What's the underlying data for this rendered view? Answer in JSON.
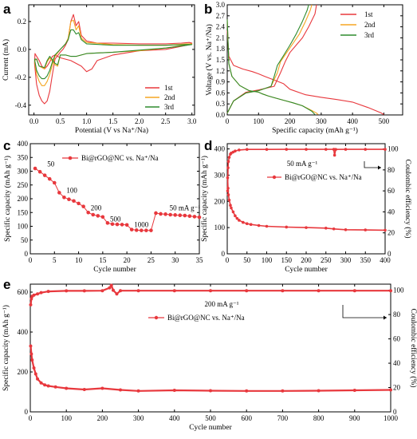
{
  "chart_data": [
    {
      "panel": "a",
      "type": "line",
      "xlabel": "Potential (V vs Na⁺/Na)",
      "ylabel": "Current (mA)",
      "xlim": [
        -0.1,
        3.05
      ],
      "ylim": [
        -0.47,
        0.32
      ],
      "xticks": [
        "0.0",
        "0.5",
        "1.0",
        "1.5",
        "2.0",
        "2.5",
        "3.0"
      ],
      "xtick_values": [
        0,
        0.5,
        1,
        1.5,
        2,
        2.5,
        3
      ],
      "yticks": [
        "-0.4",
        "-0.2",
        "0.0",
        "0.2"
      ],
      "ytick_values": [
        -0.4,
        -0.2,
        0,
        0.2
      ],
      "legend_position": "bottom-right",
      "series": [
        {
          "name": "1st",
          "color": "#e8383d",
          "x": [
            0.01,
            0.05,
            0.1,
            0.15,
            0.2,
            0.25,
            0.3,
            0.35,
            0.4,
            0.5,
            0.55,
            0.6,
            0.65,
            0.7,
            0.75,
            0.8,
            0.85,
            0.9,
            1.0,
            1.2,
            1.5,
            2.0,
            2.5,
            2.8,
            2.95,
            3.0,
            2.9,
            2.5,
            2.0,
            1.5,
            1.2,
            1.1,
            1.0,
            0.9,
            0.8,
            0.7,
            0.6,
            0.5,
            0.45,
            0.4,
            0.35,
            0.3,
            0.25,
            0.2,
            0.15,
            0.1,
            0.05,
            0.02,
            0.01
          ],
          "y": [
            -0.1,
            -0.25,
            -0.33,
            -0.37,
            -0.39,
            -0.37,
            -0.3,
            -0.18,
            -0.07,
            -0.02,
            0.0,
            0.03,
            0.07,
            0.2,
            0.25,
            0.17,
            0.2,
            0.1,
            0.06,
            0.045,
            0.045,
            0.04,
            0.04,
            0.045,
            0.05,
            0.045,
            0.03,
            0.0,
            -0.01,
            -0.04,
            -0.08,
            -0.14,
            -0.16,
            -0.12,
            -0.1,
            -0.08,
            -0.07,
            -0.06,
            -0.05,
            -0.04,
            -0.05,
            -0.09,
            -0.12,
            -0.14,
            -0.12,
            -0.08,
            -0.05,
            -0.03,
            -0.1
          ]
        },
        {
          "name": "2nd",
          "color": "#f5a623",
          "x": [
            0.01,
            0.05,
            0.1,
            0.15,
            0.2,
            0.25,
            0.3,
            0.35,
            0.4,
            0.5,
            0.6,
            0.65,
            0.7,
            0.75,
            0.8,
            0.85,
            0.9,
            1.0,
            1.5,
            2.0,
            2.5,
            2.9,
            3.0,
            2.5,
            2.0,
            1.5,
            1.0,
            0.9,
            0.8,
            0.7,
            0.6,
            0.5,
            0.45,
            0.4,
            0.3,
            0.25,
            0.2,
            0.1,
            0.05,
            0.01
          ],
          "y": [
            -0.08,
            -0.18,
            -0.23,
            -0.26,
            -0.26,
            -0.23,
            -0.18,
            -0.11,
            -0.05,
            0.0,
            0.04,
            0.08,
            0.2,
            0.21,
            0.14,
            0.17,
            0.08,
            0.05,
            0.035,
            0.03,
            0.03,
            0.04,
            0.04,
            0.01,
            -0.01,
            -0.02,
            -0.03,
            -0.04,
            -0.05,
            -0.05,
            -0.04,
            -0.04,
            -0.12,
            -0.11,
            -0.06,
            -0.09,
            -0.14,
            -0.12,
            -0.07,
            -0.08
          ]
        },
        {
          "name": "3rd",
          "color": "#2e8b2e",
          "x": [
            0.01,
            0.05,
            0.1,
            0.15,
            0.2,
            0.25,
            0.3,
            0.35,
            0.4,
            0.5,
            0.6,
            0.65,
            0.7,
            0.75,
            0.8,
            0.85,
            0.9,
            1.0,
            1.5,
            2.0,
            2.5,
            2.9,
            3.0,
            2.5,
            2.0,
            1.5,
            1.0,
            0.9,
            0.8,
            0.7,
            0.6,
            0.5,
            0.45,
            0.4,
            0.3,
            0.25,
            0.2,
            0.1,
            0.05,
            0.01
          ],
          "y": [
            -0.07,
            -0.15,
            -0.19,
            -0.21,
            -0.21,
            -0.19,
            -0.15,
            -0.09,
            -0.04,
            0.0,
            0.04,
            0.07,
            0.14,
            0.14,
            0.11,
            0.12,
            0.07,
            0.04,
            0.03,
            0.03,
            0.03,
            0.035,
            0.035,
            0.01,
            -0.005,
            -0.02,
            -0.03,
            -0.04,
            -0.05,
            -0.05,
            -0.04,
            -0.04,
            -0.11,
            -0.1,
            -0.05,
            -0.08,
            -0.13,
            -0.12,
            -0.07,
            -0.07
          ]
        }
      ]
    },
    {
      "panel": "b",
      "type": "line",
      "xlabel": "Specific capacity (mAh g⁻¹)",
      "ylabel": "Voltage (V vs. Na⁺/Na)",
      "xlim": [
        0,
        560
      ],
      "ylim": [
        0,
        3.0
      ],
      "xticks": [
        "0",
        "100",
        "200",
        "300",
        "400",
        "500"
      ],
      "xtick_values": [
        0,
        100,
        200,
        300,
        400,
        500
      ],
      "yticks": [
        "0.0",
        "0.3",
        "0.6",
        "0.9",
        "1.2",
        "1.5",
        "1.8",
        "2.1",
        "2.4",
        "2.7",
        "3.0"
      ],
      "ytick_values": [
        0,
        0.3,
        0.6,
        0.9,
        1.2,
        1.5,
        1.8,
        2.1,
        2.4,
        2.7,
        3.0
      ],
      "legend_position": "top-right",
      "series": [
        {
          "name": "1st",
          "color": "#e8383d",
          "discharge_x": [
            0,
            5,
            20,
            50,
            80,
            100,
            120,
            150,
            180,
            200,
            250,
            300,
            350,
            400,
            450,
            490,
            500
          ],
          "discharge_y": [
            2.3,
            1.6,
            1.35,
            1.25,
            1.18,
            1.12,
            1.05,
            0.95,
            0.85,
            0.7,
            0.55,
            0.48,
            0.42,
            0.35,
            0.2,
            0.06,
            0.01
          ],
          "charge_x": [
            0,
            20,
            60,
            100,
            150,
            170,
            185,
            200,
            220,
            240,
            260,
            280,
            285
          ],
          "charge_y": [
            0.05,
            0.38,
            0.62,
            0.68,
            0.78,
            1.15,
            1.45,
            1.7,
            1.9,
            2.1,
            2.4,
            2.75,
            3.0
          ]
        },
        {
          "name": "2nd",
          "color": "#f5a623",
          "discharge_x": [
            0,
            5,
            15,
            40,
            70,
            100,
            110,
            130,
            150,
            180,
            210,
            240,
            270,
            285,
            290
          ],
          "discharge_y": [
            2.6,
            1.4,
            1.05,
            0.8,
            0.66,
            0.62,
            0.58,
            0.52,
            0.47,
            0.4,
            0.33,
            0.25,
            0.12,
            0.05,
            0.01
          ],
          "charge_x": [
            0,
            20,
            60,
            100,
            140,
            160,
            170,
            190,
            210,
            230,
            250,
            265,
            270
          ],
          "charge_y": [
            0.05,
            0.38,
            0.6,
            0.66,
            0.78,
            1.15,
            1.45,
            1.7,
            1.95,
            2.2,
            2.55,
            2.85,
            3.0
          ]
        },
        {
          "name": "3rd",
          "color": "#2e8b2e",
          "discharge_x": [
            0,
            5,
            15,
            40,
            70,
            100,
            110,
            130,
            150,
            180,
            210,
            240,
            270,
            280
          ],
          "discharge_y": [
            2.6,
            1.4,
            1.05,
            0.8,
            0.66,
            0.62,
            0.58,
            0.52,
            0.47,
            0.4,
            0.33,
            0.25,
            0.1,
            0.01
          ],
          "charge_x": [
            0,
            20,
            60,
            100,
            140,
            150,
            160,
            180,
            200,
            220,
            240,
            255,
            260
          ],
          "charge_y": [
            0.05,
            0.38,
            0.6,
            0.66,
            0.78,
            1.05,
            1.35,
            1.62,
            1.9,
            2.2,
            2.55,
            2.85,
            3.0
          ]
        }
      ]
    },
    {
      "panel": "c",
      "type": "line",
      "xlabel": "Cycle number",
      "ylabel": "Specific capacity (mAh g⁻¹)",
      "xlim": [
        0,
        35
      ],
      "ylim": [
        0,
        400
      ],
      "xticks": [
        "0",
        "5",
        "10",
        "15",
        "20",
        "25",
        "30",
        "35"
      ],
      "xtick_values": [
        0,
        5,
        10,
        15,
        20,
        25,
        30,
        35
      ],
      "yticks": [
        "0",
        "50",
        "100",
        "150",
        "200",
        "250",
        "300",
        "350",
        "400"
      ],
      "ytick_values": [
        0,
        50,
        100,
        150,
        200,
        250,
        300,
        350,
        400
      ],
      "legend": "Bi@rGO@NC vs. Na⁺/Na",
      "rate_labels": [
        "50",
        "100",
        "200",
        "500",
        "1000",
        "50 mA g⁻¹"
      ],
      "series": [
        {
          "name": "Bi@rGO@NC vs. Na⁺/Na",
          "color": "#e8383d",
          "x": [
            1,
            2,
            3,
            4,
            5,
            6,
            7,
            8,
            9,
            10,
            11,
            12,
            13,
            14,
            15,
            16,
            17,
            18,
            19,
            20,
            21,
            22,
            23,
            24,
            25,
            26,
            27,
            28,
            29,
            30,
            31,
            32,
            33,
            34,
            35
          ],
          "y": [
            310,
            298,
            285,
            272,
            258,
            222,
            205,
            198,
            192,
            183,
            172,
            150,
            142,
            138,
            134,
            112,
            108,
            107,
            106,
            105,
            88,
            86,
            85,
            85,
            85,
            148,
            145,
            144,
            142,
            141,
            140,
            139,
            137,
            135,
            133
          ]
        }
      ]
    },
    {
      "panel": "d",
      "type": "scatter",
      "xlabel": "Cycle number",
      "ylabel": "Specific capacity (mAh g⁻¹)",
      "y2label": "Coulombic efficiency (%)",
      "xlim": [
        0,
        400
      ],
      "ylim": [
        0,
        420
      ],
      "y2lim": [
        0,
        105
      ],
      "xticks": [
        "0",
        "50",
        "100",
        "150",
        "200",
        "250",
        "300",
        "350",
        "400"
      ],
      "xtick_values": [
        0,
        50,
        100,
        150,
        200,
        250,
        300,
        350,
        400
      ],
      "yticks": [
        "0",
        "100",
        "200",
        "300",
        "400"
      ],
      "ytick_values": [
        0,
        100,
        200,
        300,
        400
      ],
      "y2ticks": [
        "0",
        "20",
        "40",
        "60",
        "80",
        "100"
      ],
      "y2tick_values": [
        0,
        20,
        40,
        60,
        80,
        100
      ],
      "current_label": "50 mA g⁻¹",
      "legend": "Bi@rGO@NC vs. Na⁺/Na",
      "series": [
        {
          "name": "capacity",
          "color": "#e8383d",
          "x": [
            1,
            2,
            3,
            5,
            8,
            10,
            15,
            20,
            25,
            30,
            40,
            50,
            60,
            80,
            100,
            150,
            200,
            250,
            270,
            300,
            350,
            400
          ],
          "y": [
            290,
            250,
            225,
            205,
            185,
            175,
            160,
            145,
            135,
            128,
            120,
            115,
            112,
            108,
            105,
            102,
            100,
            98,
            95,
            92,
            91,
            90
          ]
        },
        {
          "name": "coulombic_efficiency",
          "color": "#e8383d",
          "x": [
            1,
            2,
            3,
            5,
            8,
            10,
            15,
            20,
            30,
            50,
            100,
            150,
            200,
            250,
            270,
            272,
            275,
            300,
            350,
            400
          ],
          "y": [
            60,
            82,
            88,
            92,
            95,
            96,
            97,
            98,
            99,
            99.5,
            99.5,
            99.6,
            99.6,
            99.6,
            99.6,
            94,
            99.5,
            99.6,
            99.6,
            99.6
          ]
        }
      ]
    },
    {
      "panel": "e",
      "type": "scatter",
      "xlabel": "Cycle number",
      "ylabel": "Specific capacity (mAh g⁻¹)",
      "y2label": "Coulombic efficiency (%)",
      "xlim": [
        0,
        1000
      ],
      "ylim": [
        0,
        640
      ],
      "y2lim": [
        0,
        105
      ],
      "xticks": [
        "0",
        "100",
        "200",
        "300",
        "400",
        "500",
        "600",
        "700",
        "800",
        "900",
        "1000"
      ],
      "xtick_values": [
        0,
        100,
        200,
        300,
        400,
        500,
        600,
        700,
        800,
        900,
        1000
      ],
      "yticks": [
        "0",
        "200",
        "400",
        "600"
      ],
      "ytick_values": [
        0,
        200,
        400,
        600
      ],
      "y2ticks": [
        "0",
        "20",
        "40",
        "60",
        "80",
        "100"
      ],
      "y2tick_values": [
        0,
        20,
        40,
        60,
        80,
        100
      ],
      "current_label": "200 mA g⁻¹",
      "legend": "Bi@rGO@NC vs. Na⁺/Na",
      "series": [
        {
          "name": "capacity",
          "color": "#e8383d",
          "x": [
            1,
            3,
            5,
            10,
            15,
            20,
            30,
            40,
            50,
            70,
            100,
            150,
            200,
            250,
            300,
            400,
            500,
            600,
            700,
            800,
            900,
            1000
          ],
          "y": [
            330,
            290,
            260,
            220,
            190,
            165,
            145,
            135,
            130,
            125,
            118,
            112,
            118,
            110,
            105,
            108,
            106,
            105,
            105,
            106,
            108,
            110
          ]
        },
        {
          "name": "coulombic_efficiency",
          "color": "#e8383d",
          "x": [
            1,
            3,
            5,
            10,
            20,
            30,
            50,
            100,
            150,
            200,
            220,
            225,
            230,
            240,
            250,
            300,
            400,
            500,
            600,
            700,
            800,
            900,
            1000
          ],
          "y": [
            88,
            93,
            95,
            96,
            97,
            98,
            99,
            99.5,
            99.5,
            99.6,
            102,
            104,
            100,
            97,
            99.6,
            99.6,
            99.6,
            99.6,
            99.6,
            99.6,
            99.6,
            99.6,
            99.6
          ]
        }
      ]
    }
  ]
}
